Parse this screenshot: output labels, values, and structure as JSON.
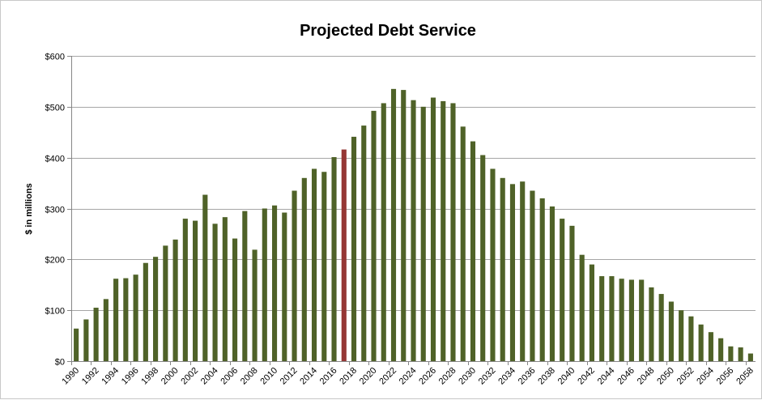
{
  "chart_data": {
    "type": "bar",
    "title": "Projected Debt Service",
    "xlabel": "",
    "ylabel": "$ in millions",
    "ylim": [
      0,
      600
    ],
    "yticks": [
      "$0",
      "$100",
      "$200",
      "$300",
      "$400",
      "$500",
      "$600"
    ],
    "grid": true,
    "legend": "none",
    "bar_color": "#4f6228",
    "highlight_color": "#953735",
    "highlight_category": "2017",
    "categories": [
      "1990",
      "1991",
      "1992",
      "1993",
      "1994",
      "1995",
      "1996",
      "1997",
      "1998",
      "1999",
      "2000",
      "2001",
      "2002",
      "2003",
      "2004",
      "2005",
      "2006",
      "2007",
      "2008",
      "2009",
      "2010",
      "2011",
      "2012",
      "2013",
      "2014",
      "2015",
      "2016",
      "2017",
      "2018",
      "2019",
      "2020",
      "2021",
      "2022",
      "2023",
      "2024",
      "2025",
      "2026",
      "2027",
      "2028",
      "2029",
      "2030",
      "2031",
      "2032",
      "2033",
      "2034",
      "2035",
      "2036",
      "2037",
      "2038",
      "2039",
      "2040",
      "2041",
      "2042",
      "2043",
      "2044",
      "2045",
      "2046",
      "2047",
      "2048",
      "2049",
      "2050",
      "2051",
      "2052",
      "2053",
      "2054",
      "2055",
      "2056",
      "2057",
      "2058"
    ],
    "values": [
      64,
      82,
      105,
      122,
      162,
      163,
      170,
      193,
      205,
      227,
      239,
      280,
      276,
      327,
      270,
      283,
      241,
      295,
      219,
      300,
      306,
      292,
      335,
      360,
      378,
      372,
      401,
      416,
      441,
      463,
      492,
      507,
      535,
      533,
      513,
      500,
      518,
      511,
      507,
      461,
      432,
      405,
      378,
      360,
      348,
      353,
      335,
      320,
      304,
      280,
      266,
      209,
      190,
      167,
      167,
      162,
      160,
      160,
      145,
      132,
      117,
      100,
      88,
      72,
      57,
      45,
      29,
      27,
      15
    ],
    "xtick_labels": [
      "1990",
      "1992",
      "1994",
      "1996",
      "1998",
      "2000",
      "2002",
      "2004",
      "2006",
      "2008",
      "2010",
      "2012",
      "2014",
      "2016",
      "2018",
      "2020",
      "2022",
      "2024",
      "2026",
      "2028",
      "2030",
      "2032",
      "2034",
      "2036",
      "2038",
      "2040",
      "2042",
      "2044",
      "2046",
      "2048",
      "2050",
      "2052",
      "2054",
      "2056",
      "2058"
    ]
  }
}
